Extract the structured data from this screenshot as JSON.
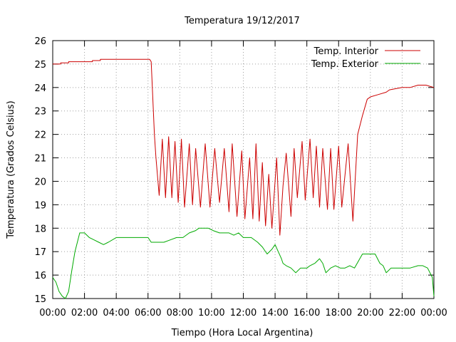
{
  "chart_data": {
    "type": "line",
    "title": "Temperatura 19/12/2017",
    "xlabel": "Tiempo (Hora Local Argentina)",
    "ylabel": "Temperatura (Grados Celsius)",
    "xlim": [
      0,
      24
    ],
    "ylim": [
      15,
      26
    ],
    "x_ticks": [
      "00:00",
      "02:00",
      "04:00",
      "06:00",
      "08:00",
      "10:00",
      "12:00",
      "14:00",
      "16:00",
      "18:00",
      "20:00",
      "22:00",
      "00:00"
    ],
    "y_ticks": [
      15,
      16,
      17,
      18,
      19,
      20,
      21,
      22,
      23,
      24,
      25,
      26
    ],
    "grid": true,
    "legend_position": "top-right",
    "x_unit": "hours since 00:00",
    "series": [
      {
        "name": "Temp. Interior",
        "color": "#cc0000",
        "x": [
          0,
          0.5,
          0.5,
          1.0,
          1.0,
          2.5,
          2.5,
          3.0,
          3.0,
          4.0,
          5.0,
          6.0,
          6.1,
          6.2,
          6.4,
          6.5,
          6.7,
          6.9,
          7.1,
          7.3,
          7.5,
          7.7,
          7.9,
          8.1,
          8.3,
          8.6,
          8.8,
          9.0,
          9.3,
          9.6,
          9.9,
          10.2,
          10.5,
          10.8,
          11.1,
          11.3,
          11.6,
          11.9,
          12.1,
          12.4,
          12.6,
          12.8,
          13.0,
          13.2,
          13.4,
          13.6,
          13.8,
          14.1,
          14.3,
          14.5,
          14.7,
          15.0,
          15.2,
          15.4,
          15.7,
          15.9,
          16.2,
          16.4,
          16.6,
          16.8,
          17.0,
          17.3,
          17.5,
          17.7,
          18.0,
          18.2,
          18.6,
          18.9,
          19.2,
          19.5,
          19.8,
          20.0,
          20.5,
          21.0,
          21.2,
          22.0,
          22.5,
          23.0,
          23.5,
          24.0
        ],
        "values": [
          25.0,
          25.0,
          25.05,
          25.05,
          25.1,
          25.1,
          25.15,
          25.15,
          25.2,
          25.2,
          25.2,
          25.2,
          25.2,
          25.1,
          22.0,
          21.0,
          19.4,
          21.8,
          19.3,
          21.9,
          19.3,
          21.7,
          19.1,
          21.8,
          18.9,
          21.6,
          19.0,
          21.4,
          18.9,
          21.6,
          18.9,
          21.4,
          19.1,
          21.4,
          18.7,
          21.6,
          18.5,
          21.3,
          18.4,
          21.0,
          18.4,
          21.6,
          18.3,
          20.8,
          18.1,
          20.3,
          18.0,
          21.0,
          17.7,
          19.8,
          21.2,
          18.5,
          21.4,
          19.3,
          21.7,
          19.2,
          21.8,
          19.3,
          21.5,
          18.9,
          21.4,
          18.8,
          21.4,
          18.8,
          21.5,
          18.9,
          21.6,
          18.3,
          22.0,
          22.8,
          23.5,
          23.6,
          23.7,
          23.8,
          23.9,
          24.0,
          24.0,
          24.1,
          24.1,
          24.0
        ]
      },
      {
        "name": "Temp. Exterior",
        "color": "#00aa00",
        "x": [
          0,
          0.2,
          0.4,
          0.6,
          0.8,
          1.0,
          1.2,
          1.4,
          1.7,
          2.0,
          2.3,
          2.6,
          2.9,
          3.2,
          3.5,
          4.0,
          4.5,
          5.0,
          5.5,
          6.0,
          6.2,
          6.6,
          7.0,
          7.4,
          7.8,
          8.2,
          8.6,
          9.0,
          9.2,
          9.5,
          9.8,
          10.1,
          10.5,
          10.8,
          11.1,
          11.4,
          11.7,
          12.0,
          12.5,
          12.9,
          13.2,
          13.5,
          13.8,
          14.0,
          14.2,
          14.4,
          14.5,
          14.7,
          15.0,
          15.3,
          15.6,
          16.0,
          16.2,
          16.5,
          16.8,
          17.0,
          17.2,
          17.5,
          17.8,
          18.1,
          18.4,
          18.7,
          19.0,
          19.5,
          19.9,
          20.3,
          20.6,
          20.8,
          21.0,
          21.3,
          21.7,
          22.0,
          22.5,
          23.0,
          23.3,
          23.6,
          23.9,
          24.0
        ],
        "values": [
          15.9,
          15.7,
          15.3,
          15.1,
          15.0,
          15.3,
          16.2,
          17.0,
          17.8,
          17.8,
          17.6,
          17.5,
          17.4,
          17.3,
          17.4,
          17.6,
          17.6,
          17.6,
          17.6,
          17.6,
          17.4,
          17.4,
          17.4,
          17.5,
          17.6,
          17.6,
          17.8,
          17.9,
          18.0,
          18.0,
          18.0,
          17.9,
          17.8,
          17.8,
          17.8,
          17.7,
          17.8,
          17.6,
          17.6,
          17.4,
          17.2,
          16.9,
          17.1,
          17.3,
          17.0,
          16.7,
          16.5,
          16.4,
          16.3,
          16.1,
          16.3,
          16.3,
          16.4,
          16.5,
          16.7,
          16.5,
          16.1,
          16.3,
          16.4,
          16.3,
          16.3,
          16.4,
          16.3,
          16.9,
          16.9,
          16.9,
          16.5,
          16.4,
          16.1,
          16.3,
          16.3,
          16.3,
          16.3,
          16.4,
          16.4,
          16.3,
          15.9,
          15.1
        ]
      }
    ]
  }
}
